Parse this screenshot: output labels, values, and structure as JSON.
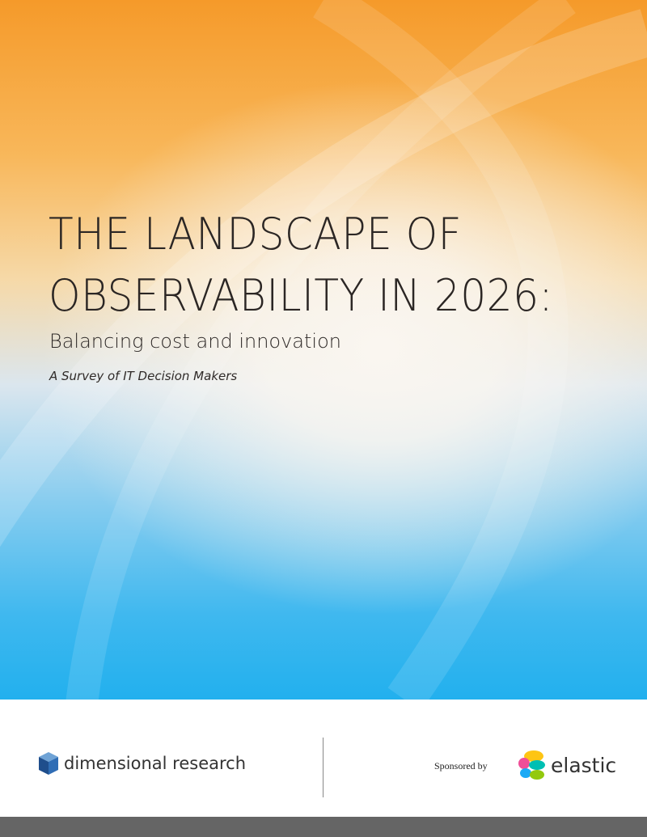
{
  "header": {
    "title_lines": [
      "THE LANDSCAPE OF",
      "OBSERVABILITY IN 2026:"
    ],
    "subtitle": "Balancing cost and innovation",
    "tagline": "A Survey of IT Decision Makers"
  },
  "footer": {
    "publisher": "dimensional research",
    "sponsored_by": "Sponsored by",
    "sponsor": "elastic"
  }
}
